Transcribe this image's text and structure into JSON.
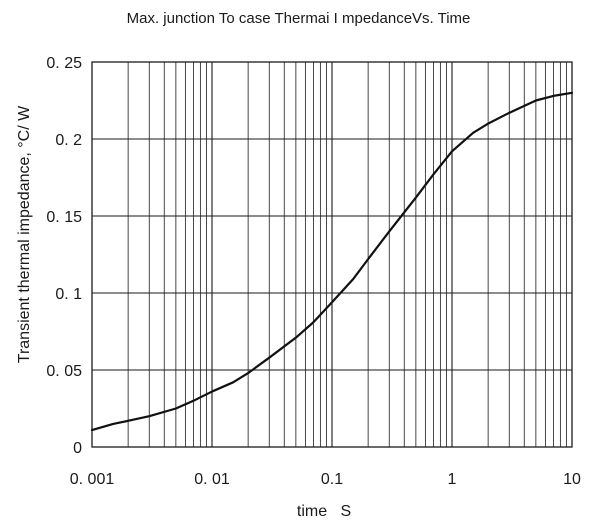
{
  "chart_data": {
    "type": "line",
    "title": "Max. junction To case Thermai I mpedanceVs. Time",
    "xlabel": "time   S",
    "ylabel": "Transient thermal impedance, °C/ W",
    "x_scale": "log",
    "xlim": [
      0.001,
      10
    ],
    "ylim": [
      0,
      0.25
    ],
    "grid": true,
    "x_ticks": [
      {
        "value": 0.001,
        "label": "0. 001"
      },
      {
        "value": 0.01,
        "label": "0. 01"
      },
      {
        "value": 0.1,
        "label": "0.1"
      },
      {
        "value": 1,
        "label": "1"
      },
      {
        "value": 10,
        "label": "10"
      }
    ],
    "y_ticks": [
      {
        "value": 0,
        "label": "0"
      },
      {
        "value": 0.05,
        "label": "0. 05"
      },
      {
        "value": 0.1,
        "label": "0. 1"
      },
      {
        "value": 0.15,
        "label": "0. 15"
      },
      {
        "value": 0.2,
        "label": "0. 2"
      },
      {
        "value": 0.25,
        "label": "0. 25"
      }
    ],
    "series": [
      {
        "color": "#111111",
        "points": [
          [
            0.001,
            0.011
          ],
          [
            0.0015,
            0.015
          ],
          [
            0.002,
            0.017
          ],
          [
            0.003,
            0.02
          ],
          [
            0.005,
            0.025
          ],
          [
            0.007,
            0.03
          ],
          [
            0.01,
            0.036
          ],
          [
            0.015,
            0.042
          ],
          [
            0.02,
            0.048
          ],
          [
            0.03,
            0.058
          ],
          [
            0.05,
            0.071
          ],
          [
            0.07,
            0.081
          ],
          [
            0.1,
            0.094
          ],
          [
            0.15,
            0.109
          ],
          [
            0.2,
            0.122
          ],
          [
            0.3,
            0.14
          ],
          [
            0.5,
            0.162
          ],
          [
            0.7,
            0.177
          ],
          [
            1.0,
            0.192
          ],
          [
            1.5,
            0.204
          ],
          [
            2.0,
            0.21
          ],
          [
            3.0,
            0.217
          ],
          [
            5.0,
            0.225
          ],
          [
            7.0,
            0.228
          ],
          [
            10.0,
            0.23
          ]
        ]
      }
    ]
  }
}
